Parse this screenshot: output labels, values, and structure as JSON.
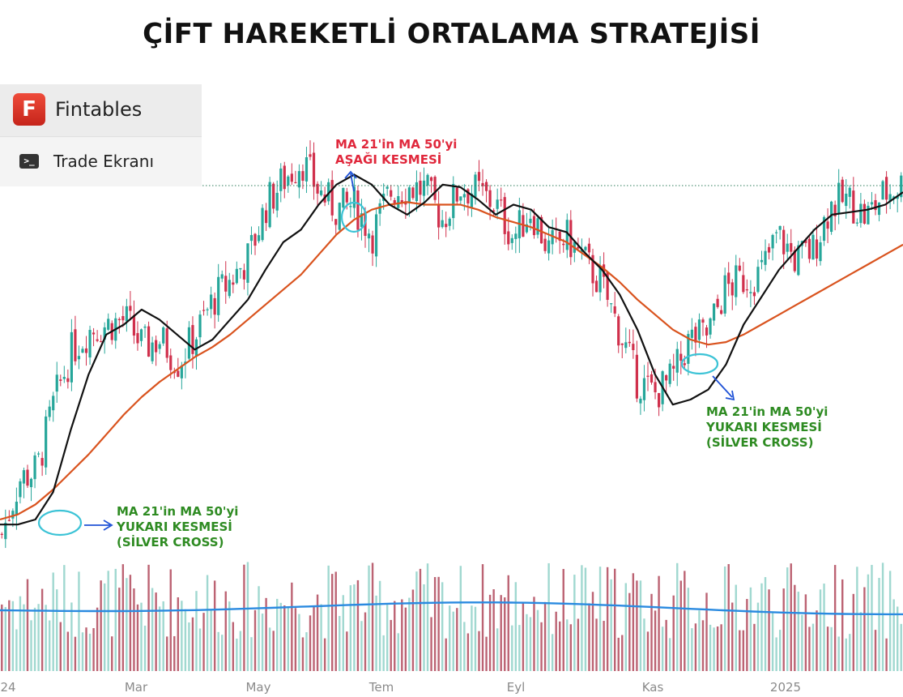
{
  "page": {
    "title": "ÇİFT HAREKETLİ ORTALAMA STRATEJİSİ"
  },
  "brand": {
    "logo_letter": "F",
    "name": "Fintables",
    "menu_item": "Trade Ekranı",
    "menu_icon": "terminal-icon"
  },
  "colors": {
    "up": "#26a69a",
    "down": "#d0304c",
    "ma21": "#111111",
    "ma50": "#d9531e",
    "volume_ma": "#2a8ae0",
    "annotation_green": "#2e8b22",
    "annotation_red": "#e0283c",
    "arrow": "#1f52d6",
    "circle": "#3cc3d6"
  },
  "chart_data": {
    "type": "candlestick",
    "x_tick_labels": [
      "24",
      "Mar",
      "May",
      "Tem",
      "Eyl",
      "Kas",
      "2025"
    ],
    "series": [
      {
        "name": "MA 21",
        "role": "ma21"
      },
      {
        "name": "MA 50",
        "role": "ma50"
      }
    ],
    "ma21_values": [
      22,
      22,
      24,
      35,
      60,
      82,
      98,
      102,
      108,
      104,
      98,
      92,
      96,
      104,
      112,
      124,
      135,
      140,
      150,
      158,
      162,
      158,
      150,
      146,
      151,
      158,
      157,
      152,
      146,
      150,
      148,
      141,
      139,
      131,
      124,
      114,
      100,
      82,
      70,
      72,
      76,
      86,
      102,
      113,
      124,
      132,
      140,
      146,
      147,
      148,
      150,
      155
    ],
    "ma50_values": [
      24,
      26,
      30,
      36,
      43,
      50,
      58,
      66,
      73,
      79,
      84,
      89,
      93,
      98,
      104,
      110,
      116,
      122,
      130,
      138,
      144,
      148,
      150,
      151,
      150,
      150,
      150,
      148,
      145,
      143,
      141,
      138,
      135,
      130,
      125,
      119,
      112,
      106,
      100,
      96,
      94,
      95,
      98,
      102,
      106,
      110,
      114,
      118,
      122,
      126,
      130,
      134
    ],
    "candles_close": [
      18,
      40,
      44,
      72,
      92,
      100,
      102,
      104,
      93,
      96,
      87,
      98,
      112,
      120,
      129,
      150,
      160,
      168,
      155,
      148,
      150,
      138,
      155,
      157,
      156,
      144,
      157,
      155,
      150,
      137,
      148,
      132,
      137,
      128,
      118,
      100,
      80,
      74,
      80,
      96,
      98,
      116,
      120,
      122,
      138,
      128,
      132,
      150,
      152,
      145,
      154,
      158
    ],
    "volume_ma": 75,
    "annotations": [
      {
        "label_lines": [
          "MA 21'in MA 50'yi",
          "YUKARI KESMESİ",
          "(SİLVER CROSS)"
        ],
        "color": "green"
      },
      {
        "label_lines": [
          "MA 21'in MA 50'yi",
          "AŞAĞI KESMESİ"
        ],
        "color": "red"
      },
      {
        "label_lines": [
          "MA 21'in MA 50'yi",
          "YUKARI KESMESİ",
          "(SİLVER CROSS)"
        ],
        "color": "green"
      }
    ]
  }
}
